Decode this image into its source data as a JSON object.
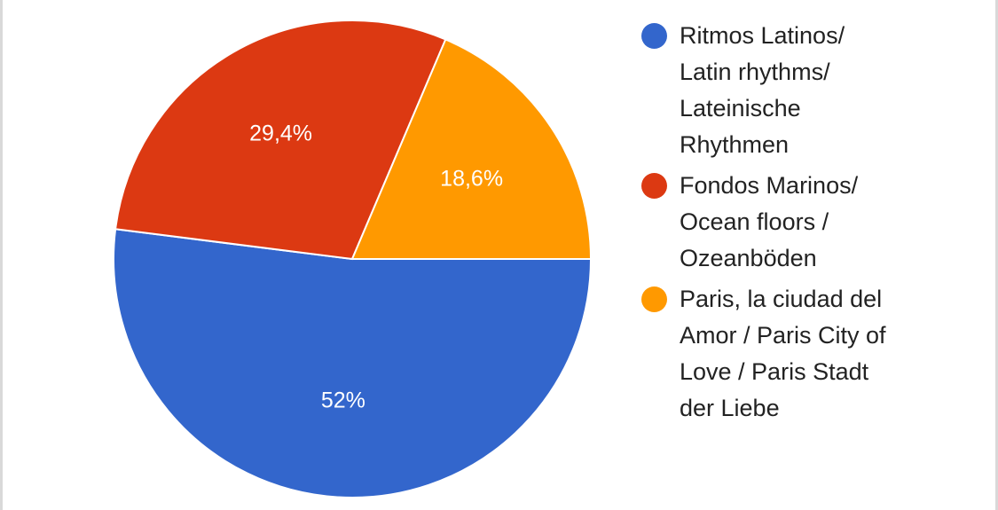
{
  "chart_data": {
    "type": "pie",
    "title": "",
    "legend_position": "right",
    "slices": [
      {
        "label": "Ritmos Latinos/\nLatin rhythms/\nLateinische\nRhythmen",
        "value": 52,
        "value_label": "52%",
        "color": "#3366cc"
      },
      {
        "label": "Fondos Marinos/\nOcean floors /\nOzeanböden",
        "value": 29.4,
        "value_label": "29,4%",
        "color": "#dc3912"
      },
      {
        "label": "Paris, la ciudad del\nAmor / Paris City of\nLove / Paris Stadt\nder Liebe",
        "value": 18.6,
        "value_label": "18,6%",
        "color": "#ff9900"
      }
    ]
  }
}
